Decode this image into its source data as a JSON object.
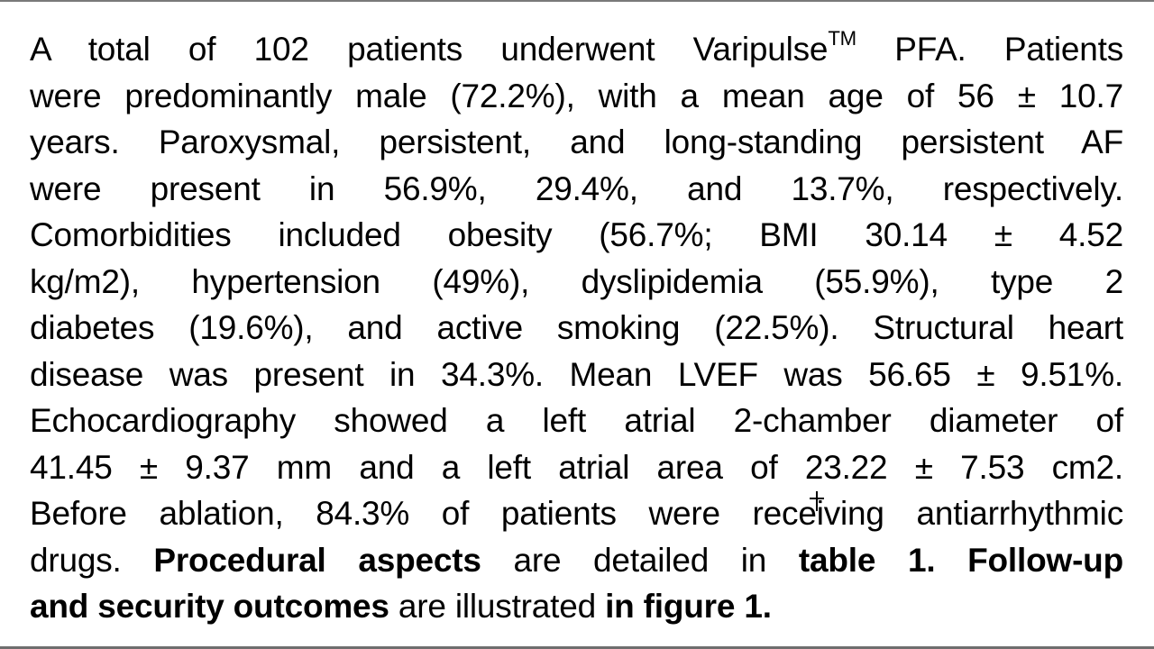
{
  "document": {
    "lines": [
      {
        "parts": [
          {
            "t": "A total of 102 patients underwent Varipulse"
          },
          {
            "t": "TM",
            "sup": true
          },
          {
            "t": " PFA. Patients"
          }
        ]
      },
      {
        "parts": [
          {
            "t": "were predominantly male (72.2%), with a mean age of 56 ± 10.7"
          }
        ]
      },
      {
        "parts": [
          {
            "t": "years. Paroxysmal, persistent, and long-standing persistent AF"
          }
        ]
      },
      {
        "parts": [
          {
            "t": "were present in 56.9%, 29.4%, and 13.7%, respectively."
          }
        ]
      },
      {
        "parts": [
          {
            "t": "Comorbidities included obesity (56.7%; BMI 30.14 ± 4.52"
          }
        ]
      },
      {
        "parts": [
          {
            "t": "kg/m2), hypertension (49%), dyslipidemia (55.9%), type 2"
          }
        ]
      },
      {
        "parts": [
          {
            "t": "diabetes (19.6%), and active smoking (22.5%). Structural heart"
          }
        ]
      },
      {
        "parts": [
          {
            "t": "disease was present in 34.3%. Mean LVEF was 56.65 ± 9.51%."
          }
        ]
      },
      {
        "parts": [
          {
            "t": "Echocardiography showed a left atrial 2-chamber diameter of"
          }
        ]
      },
      {
        "parts": [
          {
            "t": "41.45 ± 9.37 mm and a left atrial area of 23.22 ± 7.53 cm2."
          }
        ]
      },
      {
        "parts": [
          {
            "t": "Before ablation, 84.3% of patients were receiving antiarrhythmic"
          }
        ]
      },
      {
        "parts": [
          {
            "t": "drugs. "
          },
          {
            "t": "Procedural aspects",
            "bold": true
          },
          {
            "t": " are detailed in "
          },
          {
            "t": "table 1. Follow-up",
            "bold": true
          }
        ]
      },
      {
        "parts": [
          {
            "t": "and security outcomes",
            "bold": true
          },
          {
            "t": " are illustrated "
          },
          {
            "t": "in figure 1.",
            "bold": true
          }
        ],
        "last": true
      }
    ]
  },
  "cursor": {
    "icon": "text-cursor-crosshair-icon"
  }
}
